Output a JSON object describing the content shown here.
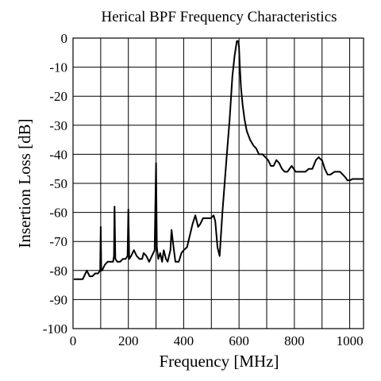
{
  "chart_data": {
    "type": "line",
    "title": "Herical BPF Frequency Characteristics",
    "xlabel": "Frequency [MHz]",
    "ylabel": "Insertion Loss [dB]",
    "xlim": [
      0,
      1050
    ],
    "ylim": [
      -100,
      0
    ],
    "x_ticks": [
      0,
      100,
      200,
      300,
      400,
      500,
      600,
      700,
      800,
      900,
      1000
    ],
    "x_tick_labels": [
      "0",
      "200",
      "400",
      "600",
      "800",
      "1000"
    ],
    "x_tick_label_values": [
      0,
      200,
      400,
      600,
      800,
      1000
    ],
    "y_ticks": [
      0,
      -10,
      -20,
      -30,
      -40,
      -50,
      -60,
      -70,
      -80,
      -90,
      -100
    ],
    "y_tick_labels": [
      "0",
      "-10",
      "-20",
      "-30",
      "-40",
      "-50",
      "-60",
      "-70",
      "-80",
      "-90",
      "-100"
    ],
    "grid": true,
    "legend": "none",
    "series": [
      {
        "x": [
          5,
          15,
          35,
          50,
          60,
          70,
          80,
          90,
          98,
          100,
          102,
          105,
          115,
          125,
          135,
          145,
          148,
          150,
          153,
          160,
          170,
          180,
          190,
          197,
          200,
          203,
          210,
          220,
          230,
          240,
          250,
          255,
          265,
          275,
          285,
          295,
          300,
          303,
          308,
          315,
          322,
          328,
          336,
          342,
          352,
          356,
          362,
          370,
          382,
          392,
          400,
          412,
          422,
          432,
          442,
          452,
          460,
          470,
          478,
          488,
          498,
          508,
          514,
          522,
          530,
          540,
          548,
          556,
          566,
          576,
          584,
          592,
          597,
          600,
          603,
          607,
          613,
          620,
          628,
          640,
          652,
          662,
          672,
          685,
          695,
          705,
          715,
          725,
          735,
          745,
          755,
          765,
          775,
          790,
          805,
          815,
          828,
          840,
          852,
          865,
          878,
          888,
          898,
          900,
          910,
          920,
          930,
          945,
          955,
          965,
          975,
          985,
          992,
          1000,
          1010,
          1020,
          1030,
          1040,
          1048
        ],
        "y": [
          -83,
          -83,
          -83,
          -80,
          -82,
          -82,
          -81,
          -81,
          -80,
          -65,
          -80,
          -80,
          -78,
          -77,
          -77,
          -77,
          -75,
          -58,
          -76,
          -77,
          -77,
          -76,
          -76,
          -75,
          -59,
          -76,
          -75,
          -73,
          -75,
          -76,
          -76,
          -74,
          -75,
          -77,
          -75,
          -73,
          -43,
          -72,
          -76,
          -74,
          -77,
          -73,
          -76,
          -77,
          -73,
          -66,
          -71,
          -77,
          -77,
          -74,
          -73,
          -72,
          -68,
          -64,
          -61,
          -65,
          -64,
          -62,
          -62,
          -62,
          -62,
          -61,
          -63,
          -72,
          -75,
          -60,
          -50,
          -40,
          -28,
          -13,
          -6,
          -1,
          -1,
          -3,
          -10,
          -17,
          -23,
          -28,
          -32,
          -35,
          -37,
          -38,
          -40,
          -40,
          -41,
          -42,
          -44,
          -44,
          -42,
          -43,
          -45,
          -46,
          -46,
          -44,
          -46,
          -46,
          -46,
          -46,
          -45,
          -45,
          -42,
          -41,
          -42,
          -42,
          -45,
          -47,
          -47,
          -46,
          -46,
          -46,
          -47,
          -48,
          -49,
          -49,
          -48.5,
          -48.5,
          -48.5,
          -48.5,
          -48.5
        ]
      }
    ]
  }
}
